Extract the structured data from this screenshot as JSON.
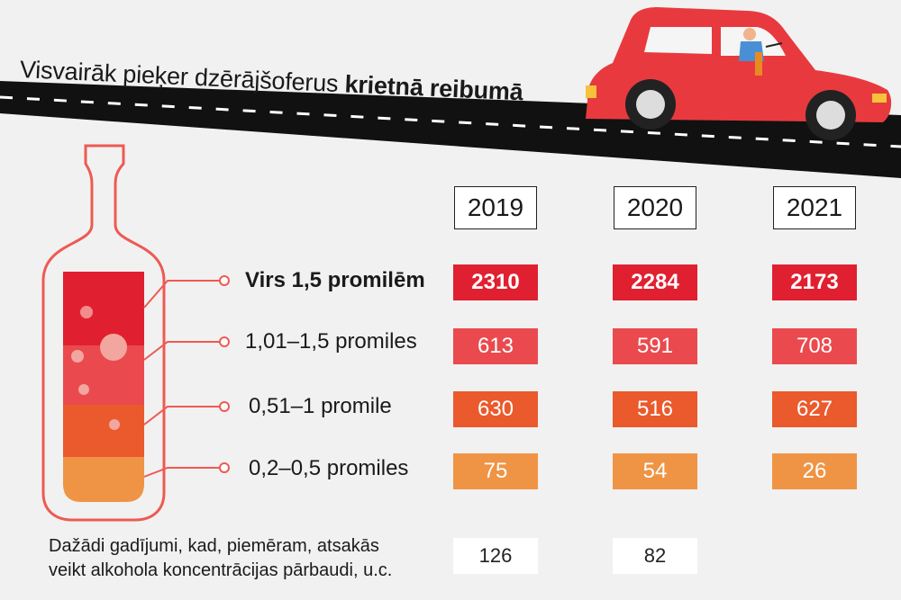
{
  "title_regular": "Visvairāk pieķer dzērājšoferus ",
  "title_bold": "krietnā reibumā",
  "chart_data": {
    "type": "table",
    "title": "Visvairāk pieķer dzērājšoferus krietnā reibumā",
    "columns": [
      "2019",
      "2020",
      "2021"
    ],
    "rows": [
      {
        "label": "Virs 1,5 promilēm",
        "values": [
          "2310",
          "2284",
          "2173"
        ],
        "color": "#e02030"
      },
      {
        "label": "1,01–1,5 promiles",
        "values": [
          "613",
          "591",
          "708"
        ],
        "color": "#ea4a4e"
      },
      {
        "label": "0,51–1 promile",
        "values": [
          "630",
          "516",
          "627"
        ],
        "color": "#ea5a2c"
      },
      {
        "label": "0,2–0,5 promiles",
        "values": [
          "75",
          "54",
          "26"
        ],
        "color": "#ef9444"
      }
    ],
    "other": {
      "label_line1": "Dažādi gadījumi, kad, piemēram, atsakās",
      "label_line2": "veikt alkohola koncentrācijas pārbaudi, u.c.",
      "values": [
        "126",
        "82"
      ]
    }
  },
  "colors": {
    "bottle_outline": "#ee5a52",
    "road": "#111111",
    "car": "#e83a3e"
  }
}
